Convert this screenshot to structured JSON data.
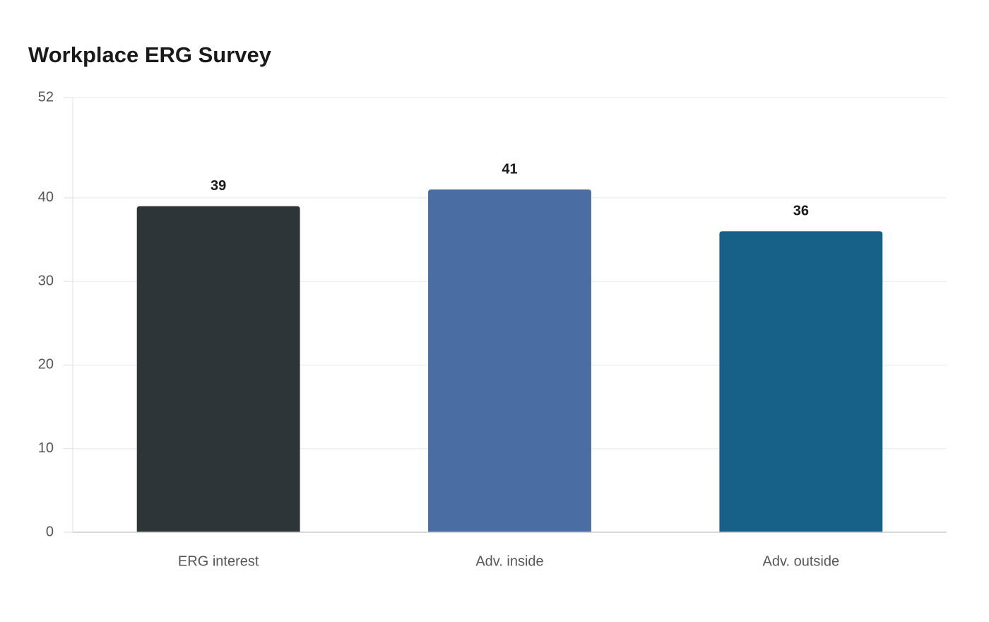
{
  "chart_data": {
    "type": "bar",
    "title": "Workplace ERG Survey",
    "categories": [
      "ERG interest",
      "Adv. inside",
      "Adv. outside"
    ],
    "values": [
      39,
      41,
      36
    ],
    "colors": [
      "#2e3538",
      "#4a6ea3",
      "#176087"
    ],
    "ylim": [
      0,
      52
    ],
    "yticks": [
      0,
      10,
      20,
      30,
      40,
      52
    ],
    "grid": true
  }
}
